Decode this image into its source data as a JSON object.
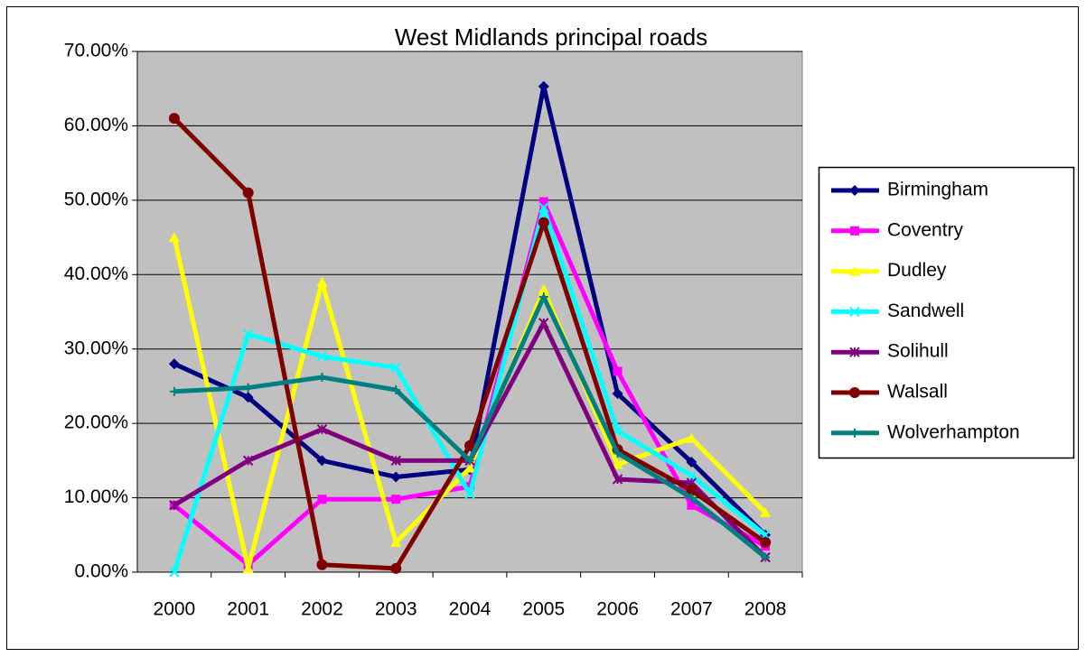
{
  "chart_data": {
    "type": "line",
    "title": "West Midlands principal roads",
    "categories": [
      "2000",
      "2001",
      "2002",
      "2003",
      "2004",
      "2005",
      "2006",
      "2007",
      "2008"
    ],
    "series": [
      {
        "name": "Birmingham",
        "color": "#000080",
        "marker": "diamond",
        "values": [
          28.0,
          23.5,
          15.0,
          12.8,
          13.8,
          65.3,
          24.0,
          14.8,
          5.0
        ]
      },
      {
        "name": "Coventry",
        "color": "#ff00ff",
        "marker": "square",
        "values": [
          9.0,
          1.0,
          9.8,
          9.8,
          11.5,
          49.8,
          27.0,
          9.0,
          3.5
        ]
      },
      {
        "name": "Dudley",
        "color": "#ffff00",
        "marker": "triangle",
        "values": [
          45.0,
          0.5,
          39.0,
          4.0,
          14.0,
          38.0,
          14.5,
          18.0,
          8.0
        ]
      },
      {
        "name": "Sandwell",
        "color": "#00ffff",
        "marker": "x",
        "values": [
          0.0,
          32.0,
          29.0,
          27.5,
          10.5,
          49.0,
          19.0,
          13.0,
          5.0
        ]
      },
      {
        "name": "Solihull",
        "color": "#800080",
        "marker": "star",
        "values": [
          9.0,
          15.0,
          19.2,
          15.0,
          15.0,
          33.5,
          12.5,
          12.0,
          2.0
        ]
      },
      {
        "name": "Walsall",
        "color": "#800000",
        "marker": "circle",
        "values": [
          61.0,
          51.0,
          1.0,
          0.5,
          17.0,
          47.0,
          16.5,
          11.0,
          4.0
        ]
      },
      {
        "name": "Wolverhampton",
        "color": "#008080",
        "marker": "plus",
        "values": [
          24.3,
          24.8,
          26.2,
          24.5,
          15.0,
          37.0,
          16.0,
          10.0,
          2.0
        ]
      }
    ],
    "ylim": [
      0,
      70
    ],
    "yticks": [
      {
        "value": 0,
        "label": "0.00%"
      },
      {
        "value": 10,
        "label": "10.00%"
      },
      {
        "value": 20,
        "label": "20.00%"
      },
      {
        "value": 30,
        "label": "30.00%"
      },
      {
        "value": 40,
        "label": "40.00%"
      },
      {
        "value": 50,
        "label": "50.00%"
      },
      {
        "value": 60,
        "label": "60.00%"
      },
      {
        "value": 70,
        "label": "70.00%"
      }
    ],
    "grid": true,
    "legend": "right",
    "plot_background": "#c0c0c0"
  }
}
